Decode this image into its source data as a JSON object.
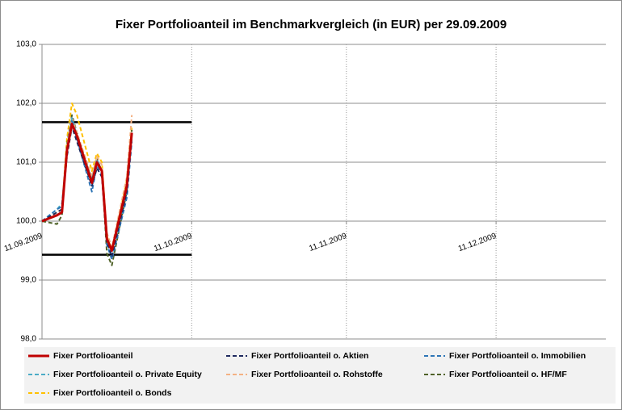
{
  "chart_data": {
    "type": "line",
    "title": "Fixer Portfolioanteil  im Benchmarkvergleich (in EUR) per 29.09.2009",
    "x": [
      "2009-09-11",
      "2009-09-14",
      "2009-09-15",
      "2009-09-16",
      "2009-09-17",
      "2009-09-18",
      "2009-09-21",
      "2009-09-22",
      "2009-09-23",
      "2009-09-24",
      "2009-09-25",
      "2009-09-28",
      "2009-09-29"
    ],
    "xlim": [
      "2009-09-11",
      "2010-01-02"
    ],
    "xticks": [
      {
        "value": "2009-09-11",
        "label": "11.09.2009"
      },
      {
        "value": "2009-10-11",
        "label": "11.10.2009"
      },
      {
        "value": "2009-11-11",
        "label": "11.11.2009"
      },
      {
        "value": "2009-12-11",
        "label": "11.12.2009"
      }
    ],
    "ylim": [
      98,
      103
    ],
    "yticks": [
      {
        "value": 98,
        "label": "98,0"
      },
      {
        "value": 99,
        "label": "99,0"
      },
      {
        "value": 100,
        "label": "100,0"
      },
      {
        "value": 101,
        "label": "101,0"
      },
      {
        "value": 102,
        "label": "102,0"
      },
      {
        "value": 103,
        "label": "103,0"
      }
    ],
    "x_axis_at": 100,
    "grid": true,
    "reference_lines": [
      {
        "value": 101.68,
        "from": "2009-09-11",
        "to": "2009-10-11",
        "color": "#000000"
      },
      {
        "value": 99.43,
        "from": "2009-09-11",
        "to": "2009-10-11",
        "color": "#000000"
      }
    ],
    "series": [
      {
        "name": "Fixer Portfolioanteil",
        "color": "#c00000",
        "style": "solid",
        "values": [
          100.0,
          100.1,
          100.15,
          101.2,
          101.65,
          101.45,
          100.65,
          101.0,
          100.85,
          99.7,
          99.5,
          100.6,
          101.5
        ]
      },
      {
        "name": "Fixer Portfolioanteil o. Aktien",
        "color": "#1f2a5f",
        "style": "dashed",
        "values": [
          100.0,
          100.15,
          100.2,
          101.1,
          101.6,
          101.35,
          100.6,
          100.9,
          100.75,
          99.65,
          99.4,
          100.5,
          101.45
        ]
      },
      {
        "name": "Fixer Portfolioanteil o. Immobilien",
        "color": "#2e75b6",
        "style": "dashed",
        "values": [
          100.0,
          100.2,
          100.25,
          101.15,
          101.7,
          101.4,
          100.5,
          100.95,
          100.8,
          99.6,
          99.35,
          100.4,
          101.35
        ]
      },
      {
        "name": "Fixer Portfolioanteil o. Private Equity",
        "color": "#4bacc6",
        "style": "dashed",
        "values": [
          100.0,
          100.2,
          100.3,
          101.2,
          101.75,
          101.45,
          100.7,
          101.05,
          100.85,
          99.65,
          99.4,
          100.45,
          101.4
        ]
      },
      {
        "name": "Fixer Portfolioanteil o. Rohstoffe",
        "color": "#f4b183",
        "style": "dashed",
        "values": [
          100.0,
          100.1,
          100.15,
          101.25,
          101.75,
          101.5,
          100.75,
          101.1,
          100.95,
          99.8,
          99.55,
          100.75,
          101.8
        ]
      },
      {
        "name": "Fixer Portfolioanteil o. HF/MF",
        "color": "#4f6228",
        "style": "dashed",
        "values": [
          100.0,
          99.95,
          100.1,
          101.3,
          101.8,
          101.5,
          100.7,
          101.05,
          100.85,
          99.45,
          99.25,
          100.5,
          101.55
        ]
      },
      {
        "name": "Fixer Portfolioanteil o. Bonds",
        "color": "#ffc000",
        "style": "dashed",
        "values": [
          100.0,
          100.15,
          100.2,
          101.4,
          102.0,
          101.8,
          100.85,
          101.15,
          101.0,
          99.75,
          99.5,
          100.7,
          101.6
        ]
      }
    ]
  }
}
